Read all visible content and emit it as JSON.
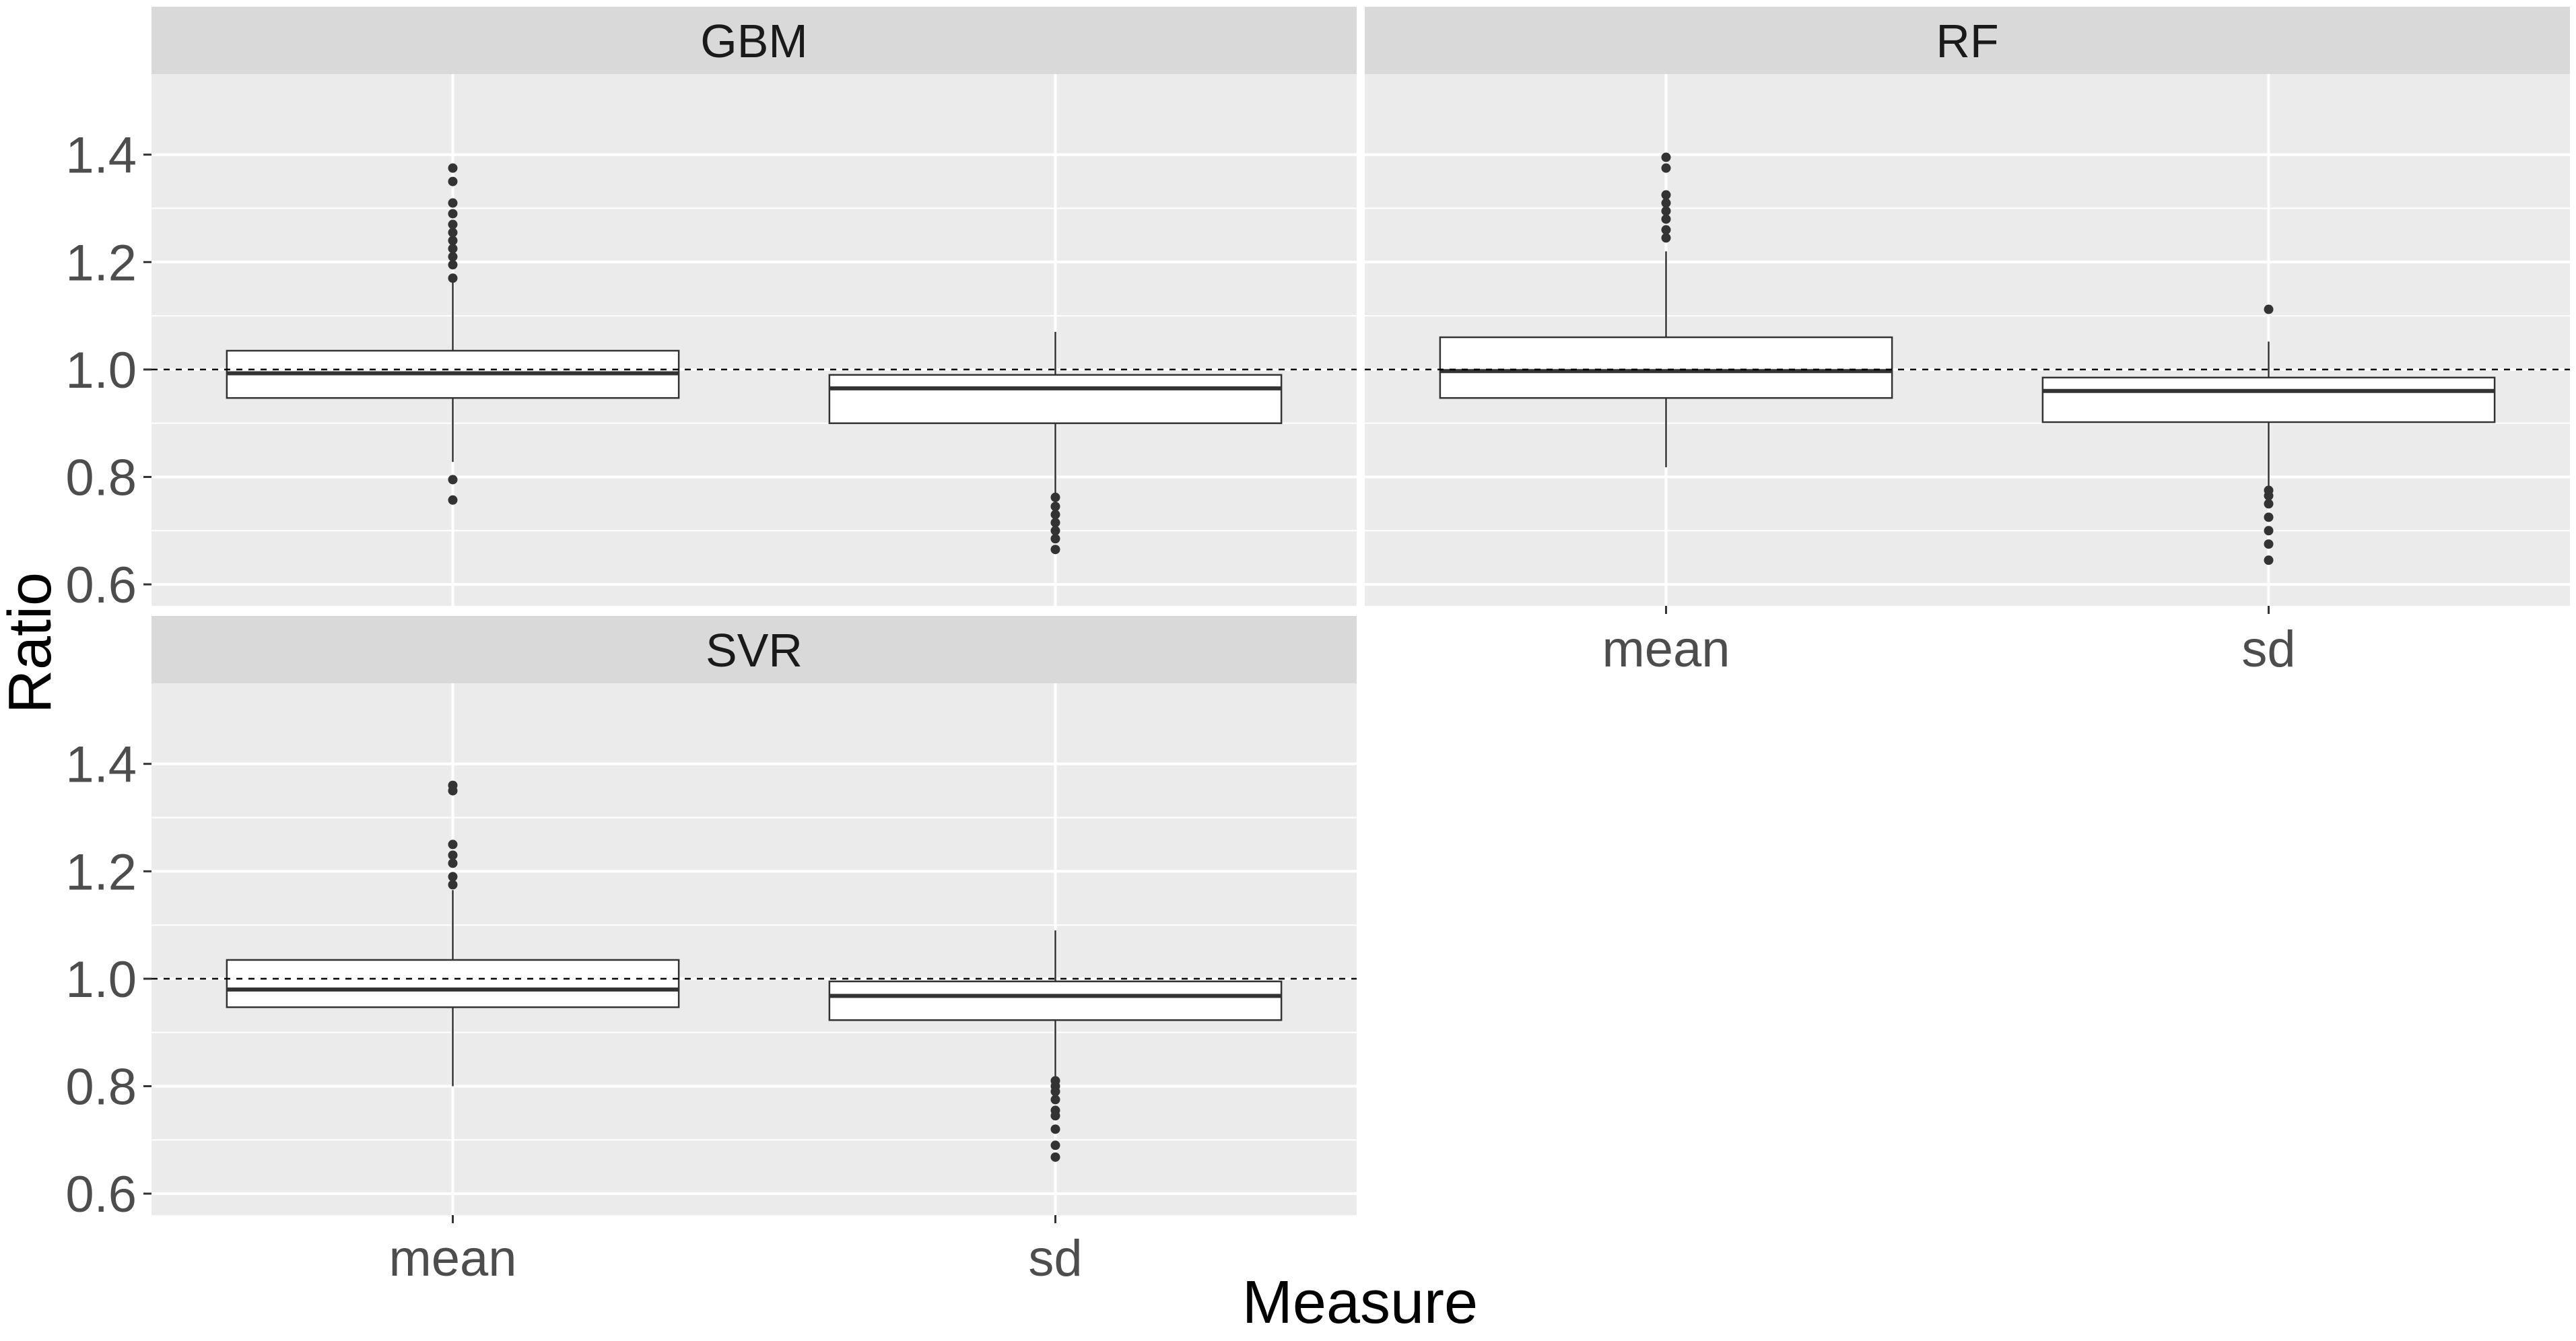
{
  "chart_data": {
    "type": "boxplot",
    "facet_layout": "wrap",
    "xlabel": "Measure",
    "ylabel": "Ratio",
    "ylim": [
      0.56,
      1.55
    ],
    "y_ticks": [
      0.6,
      0.8,
      1.0,
      1.2,
      1.4
    ],
    "y_tick_labels": [
      "0.6",
      "0.8",
      "1.0",
      "1.2",
      "1.4"
    ],
    "categories": [
      "mean",
      "sd"
    ],
    "reference_line": {
      "y": 1.0,
      "style": "dashed"
    },
    "grid": true,
    "colors": {
      "panel_background": "#EBEBEB",
      "strip_background": "#D9D9D9",
      "grid": "#FFFFFF",
      "box_fill": "#FFFFFF",
      "box_outline": "#333333",
      "outlier": "#333333"
    },
    "panels": [
      {
        "name": "GBM",
        "boxes": [
          {
            "category": "mean",
            "q1": 0.947,
            "median": 0.993,
            "q3": 1.035,
            "whisker_low": 0.828,
            "whisker_high": 1.165,
            "outliers": [
              0.757,
              0.795,
              1.17,
              1.195,
              1.21,
              1.225,
              1.24,
              1.255,
              1.27,
              1.29,
              1.31,
              1.35,
              1.375
            ]
          },
          {
            "category": "sd",
            "q1": 0.9,
            "median": 0.965,
            "q3": 0.99,
            "whisker_low": 0.765,
            "whisker_high": 1.07,
            "outliers": [
              0.665,
              0.685,
              0.7,
              0.715,
              0.73,
              0.745,
              0.762
            ]
          }
        ]
      },
      {
        "name": "RF",
        "boxes": [
          {
            "category": "mean",
            "q1": 0.947,
            "median": 0.997,
            "q3": 1.06,
            "whisker_low": 0.818,
            "whisker_high": 1.22,
            "outliers": [
              1.245,
              1.26,
              1.28,
              1.295,
              1.31,
              1.325,
              1.375,
              1.395
            ]
          },
          {
            "category": "sd",
            "q1": 0.902,
            "median": 0.96,
            "q3": 0.985,
            "whisker_low": 0.78,
            "whisker_high": 1.052,
            "outliers": [
              0.645,
              0.675,
              0.7,
              0.725,
              0.75,
              0.765,
              0.775,
              1.112
            ]
          }
        ]
      },
      {
        "name": "SVR",
        "boxes": [
          {
            "category": "mean",
            "q1": 0.947,
            "median": 0.98,
            "q3": 1.035,
            "whisker_low": 0.8,
            "whisker_high": 1.165,
            "outliers": [
              1.175,
              1.19,
              1.215,
              1.23,
              1.25,
              1.35,
              1.36
            ]
          },
          {
            "category": "sd",
            "q1": 0.923,
            "median": 0.968,
            "q3": 0.995,
            "whisker_low": 0.815,
            "whisker_high": 1.09,
            "outliers": [
              0.668,
              0.69,
              0.72,
              0.745,
              0.755,
              0.775,
              0.79,
              0.8,
              0.81
            ]
          }
        ]
      }
    ]
  }
}
